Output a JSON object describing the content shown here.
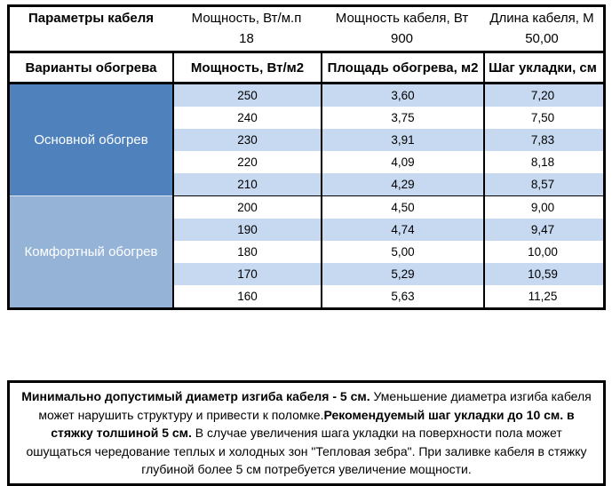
{
  "colors": {
    "border": "#000000",
    "group_primary_bg": "#4F81BD",
    "group_comfort_bg": "#95B3D7",
    "row_stripe_bg": "#C6D9F0",
    "group_label_text": "#FFFFFF"
  },
  "params": {
    "title": "Параметры кабеля",
    "items": [
      {
        "label": "Мощность, Вт/м.п",
        "value": "18"
      },
      {
        "label": "Мощность кабеля, Вт",
        "value": "900"
      },
      {
        "label": "Длина кабеля, М",
        "value": "50,00"
      }
    ]
  },
  "table": {
    "headers": [
      "Варианты обогрева",
      "Мощность, Вт/м2",
      "Площадь обогрева, м2",
      "Шаг укладки, см"
    ],
    "groups": [
      {
        "label": "Основной обогрев",
        "rows": [
          [
            "250",
            "3,60",
            "7,20"
          ],
          [
            "240",
            "3,75",
            "7,50"
          ],
          [
            "230",
            "3,91",
            "7,83"
          ],
          [
            "220",
            "4,09",
            "8,18"
          ],
          [
            "210",
            "4,29",
            "8,57"
          ]
        ]
      },
      {
        "label": "Комфортный обогрев",
        "rows": [
          [
            "200",
            "4,50",
            "9,00"
          ],
          [
            "190",
            "4,74",
            "9,47"
          ],
          [
            "180",
            "5,00",
            "10,00"
          ],
          [
            "170",
            "5,29",
            "10,59"
          ],
          [
            "160",
            "5,63",
            "11,25"
          ]
        ]
      }
    ]
  },
  "note": {
    "segments": [
      {
        "bold": true,
        "text": "Минимально допустимый диаметр изгиба кабеля - 5 см."
      },
      {
        "bold": false,
        "text": "  Уменьшение диаметра изгиба кабеля может нарушить структуру и привести к поломке."
      },
      {
        "bold": true,
        "text": "Рекомендуемый шаг укладки до 10 см. в стяжку толшиной 5 см."
      },
      {
        "bold": false,
        "text": " В  случае увеличения шага укладки на поверхности пола может ошущаться чередование теплых и холодных зон \"Тепловая зебра\". При заливке кабеля в стяжку глубиной более 5 см потребуется увеличение мощности."
      }
    ]
  }
}
